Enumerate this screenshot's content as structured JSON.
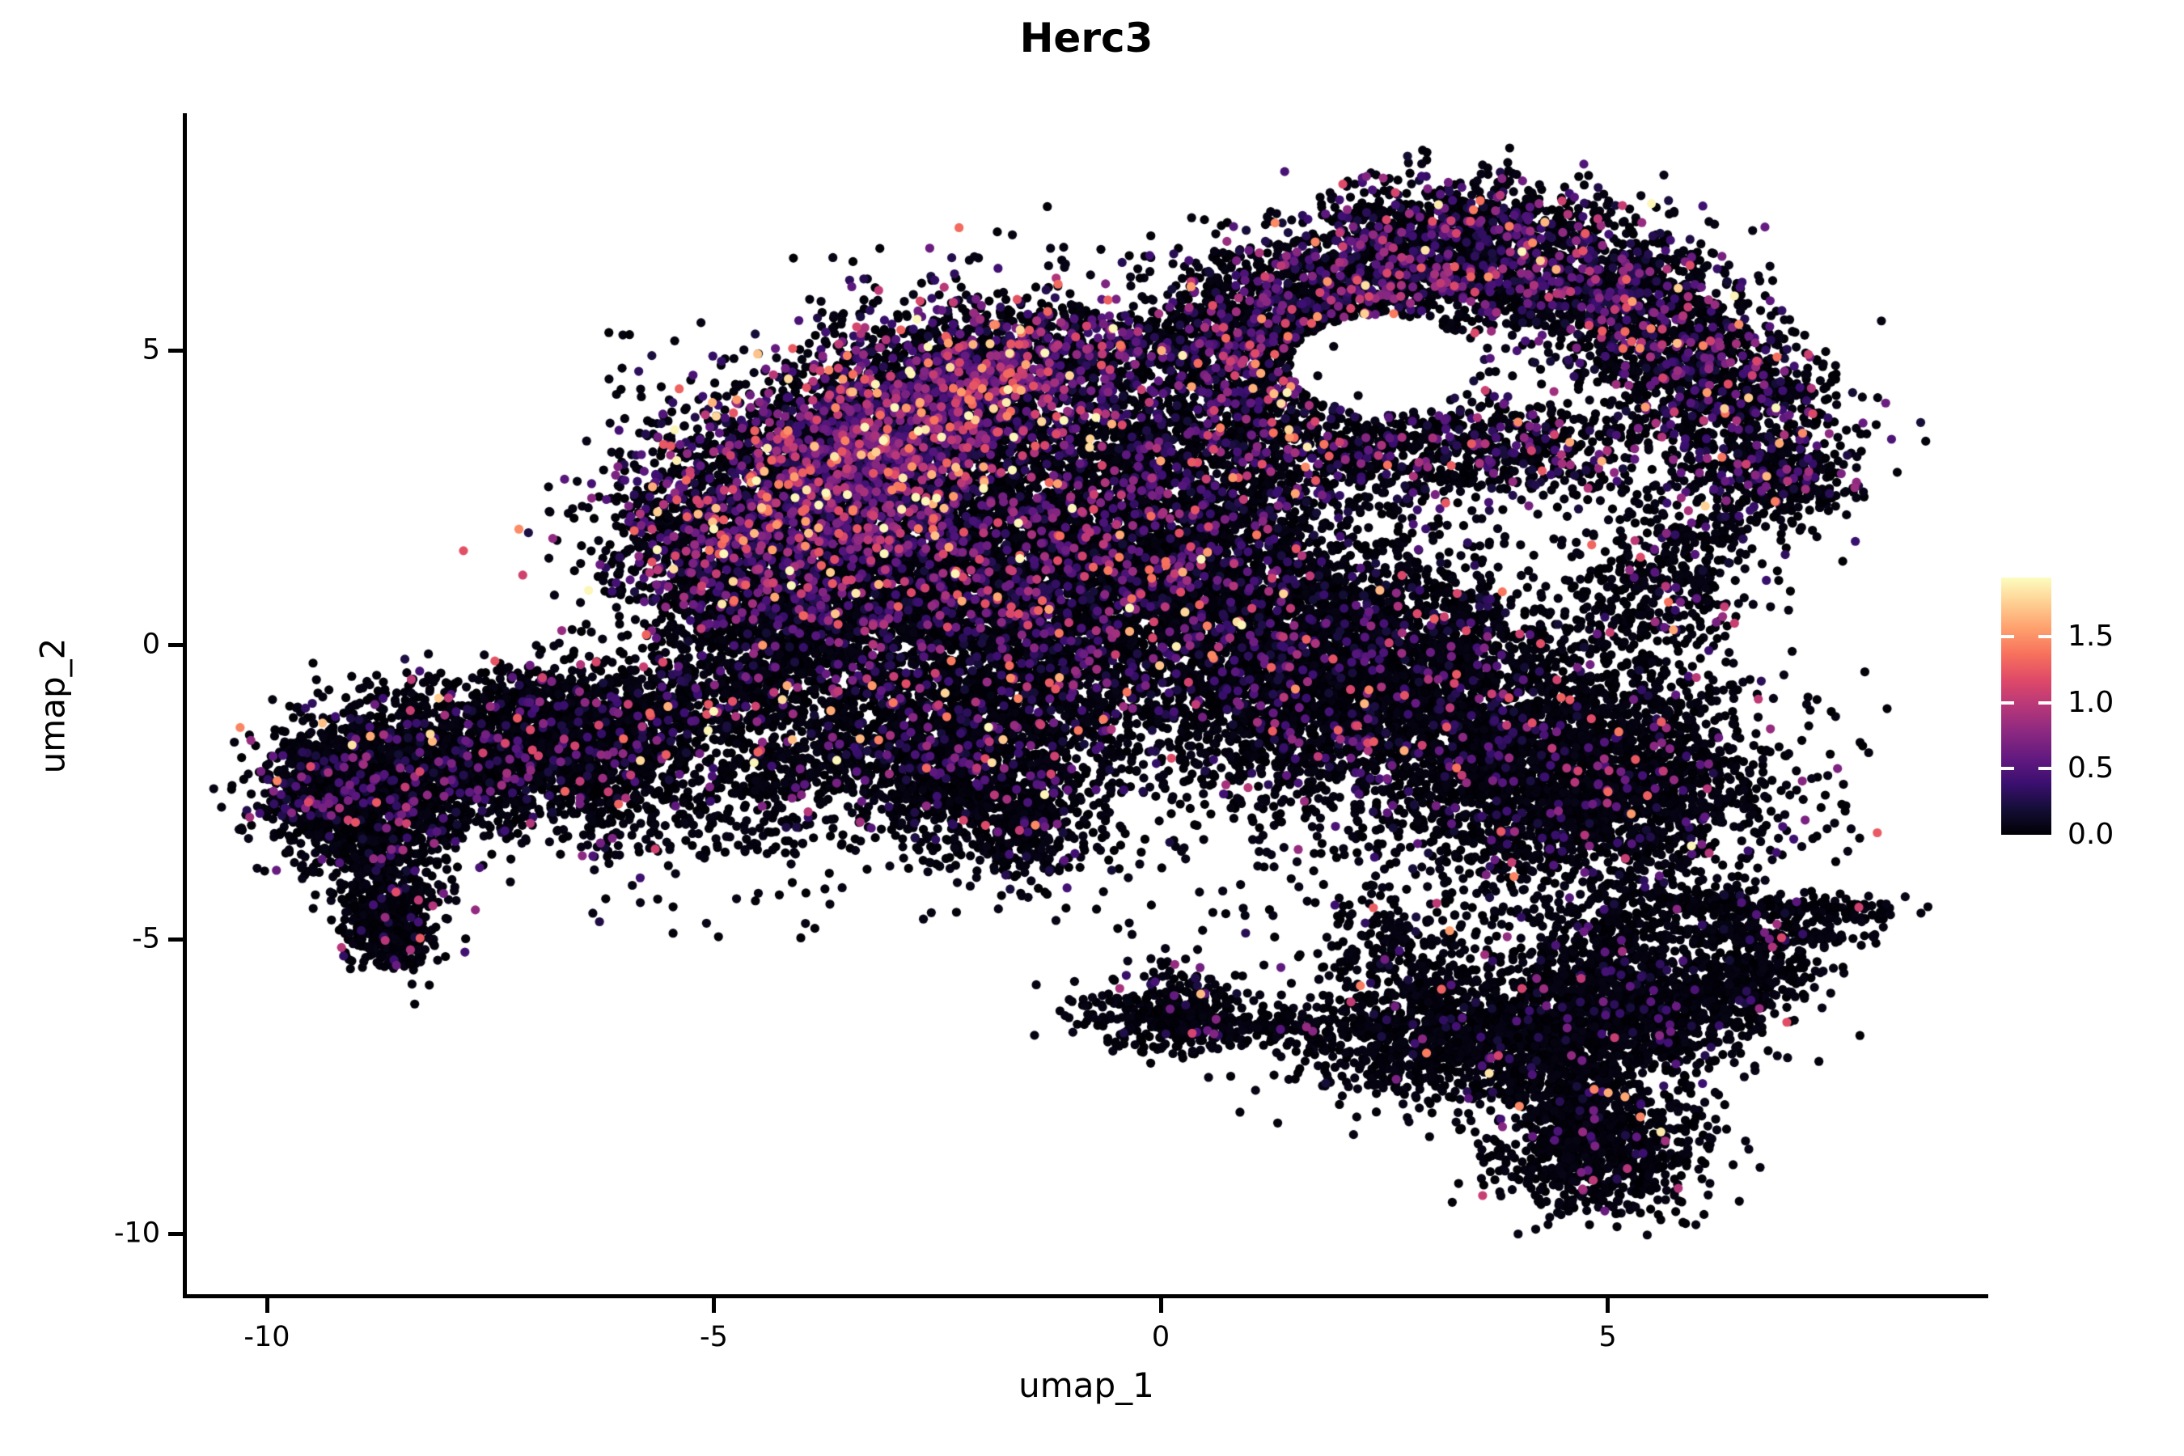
{
  "title": "Herc3",
  "axes": {
    "x_label": "umap_1",
    "y_label": "umap_2",
    "x_ticks": [
      "-10",
      "-5",
      "0",
      "5"
    ],
    "x_tick_values": [
      -10,
      -5,
      0,
      5
    ],
    "y_ticks": [
      "5",
      "0",
      "-5",
      "-10"
    ],
    "y_tick_values": [
      5,
      0,
      -5,
      -10
    ]
  },
  "legend": {
    "tick_labels": [
      "1.5",
      "1.0",
      "0.5",
      "0.0"
    ],
    "tick_values": [
      1.5,
      1.0,
      0.5,
      0.0
    ],
    "vmin": 0.0,
    "vmax": 1.95
  },
  "chart_data": {
    "type": "scatter",
    "title": "Herc3",
    "xlabel": "umap_1",
    "ylabel": "umap_2",
    "xlim": [
      -10.9,
      9.2
    ],
    "ylim": [
      -11.0,
      9.0
    ],
    "grid": false,
    "legend_position": "right",
    "colormap": "magma",
    "colormap_stops": [
      [
        0.0,
        "#000004"
      ],
      [
        0.1,
        "#140e36"
      ],
      [
        0.2,
        "#3b0f70"
      ],
      [
        0.3,
        "#641a80"
      ],
      [
        0.4,
        "#8c2981"
      ],
      [
        0.5,
        "#b73779"
      ],
      [
        0.6,
        "#de4968"
      ],
      [
        0.7,
        "#f7705c"
      ],
      [
        0.8,
        "#fe9f6d"
      ],
      [
        0.9,
        "#fecf92"
      ],
      [
        1.0,
        "#fcfdbf"
      ]
    ],
    "point_radius_px": 5.6,
    "seed": 1337,
    "hole": {
      "cx": 2.45,
      "cy": 4.75,
      "rx": 1.0,
      "ry": 0.85
    },
    "clusters": [
      {
        "name": "left-arm",
        "type": "strip",
        "x1": -9.4,
        "y1": -2.6,
        "x2": -6.2,
        "y2": -1.55,
        "sx": 0.45,
        "sy": 0.62,
        "n": 2600,
        "colored": 0.09
      },
      {
        "name": "left-tip",
        "type": "gauss",
        "cx": -9.35,
        "cy": -2.3,
        "sx": 0.35,
        "sy": 0.5,
        "n": 400,
        "colored": 0.1
      },
      {
        "name": "left-finger",
        "type": "strip",
        "x1": -8.75,
        "y1": -3.0,
        "x2": -8.55,
        "y2": -5.1,
        "sx": 0.3,
        "sy": 0.35,
        "n": 650,
        "colored": 0.05
      },
      {
        "name": "left-finger-tip",
        "type": "gauss",
        "cx": -8.6,
        "cy": -5.0,
        "sx": 0.22,
        "sy": 0.22,
        "n": 150,
        "colored": 0.04
      },
      {
        "name": "arm-top-scatter",
        "type": "strip",
        "x1": -8.8,
        "y1": -1.1,
        "x2": -6.3,
        "y2": -0.9,
        "sx": 0.5,
        "sy": 0.35,
        "n": 280,
        "colored": 0.08
      },
      {
        "name": "arm-bridge",
        "type": "strip",
        "x1": -6.2,
        "y1": -1.8,
        "x2": -4.6,
        "y2": -0.6,
        "sx": 0.5,
        "sy": 0.55,
        "n": 800,
        "colored": 0.08
      },
      {
        "name": "bridge-sparse-low",
        "type": "uniform",
        "x1": -6.5,
        "y1": -3.6,
        "x2": -4.0,
        "y2": -1.8,
        "n": 300,
        "colored": 0.07
      },
      {
        "name": "bridge-sparse-mid",
        "type": "uniform",
        "x1": -4.6,
        "y1": -2.5,
        "x2": -3.4,
        "y2": 0.0,
        "n": 250,
        "colored": 0.07
      },
      {
        "name": "neck",
        "type": "gauss",
        "cx": -4.3,
        "cy": 0.7,
        "sx": 0.6,
        "sy": 0.6,
        "n": 700,
        "colored": 0.12
      },
      {
        "name": "upper-wedge",
        "type": "strip",
        "x1": -5.0,
        "y1": 1.6,
        "x2": -1.6,
        "y2": 4.6,
        "sx": 0.85,
        "sy": 0.95,
        "n": 4600,
        "colored": 0.34,
        "value_scale": 1.15
      },
      {
        "name": "upper-wedge-top",
        "type": "strip",
        "x1": -4.3,
        "y1": 2.9,
        "x2": -1.2,
        "y2": 5.1,
        "sx": 0.6,
        "sy": 0.45,
        "n": 1200,
        "colored": 0.38,
        "value_scale": 1.15
      },
      {
        "name": "upper-wedge-left-edge",
        "type": "strip",
        "x1": -5.9,
        "y1": 1.2,
        "x2": -5.2,
        "y2": 2.6,
        "sx": 0.35,
        "sy": 0.4,
        "n": 180,
        "colored": 0.15
      },
      {
        "name": "central-mass",
        "type": "gauss",
        "cx": -1.7,
        "cy": 0.9,
        "sx": 1.45,
        "sy": 1.35,
        "n": 5200,
        "colored": 0.16
      },
      {
        "name": "central-low-bump",
        "type": "gauss",
        "cx": -2.3,
        "cy": -1.9,
        "sx": 0.8,
        "sy": 0.75,
        "n": 1400,
        "colored": 0.1
      },
      {
        "name": "central-dip",
        "type": "gauss",
        "cx": -1.6,
        "cy": -3.0,
        "sx": 0.45,
        "sy": 0.5,
        "n": 350,
        "colored": 0.08
      },
      {
        "name": "mid-bridge",
        "type": "gauss",
        "cx": 0.3,
        "cy": 1.6,
        "sx": 0.9,
        "sy": 1.1,
        "n": 1500,
        "colored": 0.14
      },
      {
        "name": "mid-upper",
        "type": "gauss",
        "cx": 0.0,
        "cy": 3.6,
        "sx": 0.8,
        "sy": 0.7,
        "n": 600,
        "colored": 0.2
      },
      {
        "name": "top-band",
        "type": "strip",
        "x1": -1.3,
        "y1": 5.0,
        "x2": 0.9,
        "y2": 5.15,
        "sx": 0.45,
        "sy": 0.35,
        "n": 300,
        "colored": 0.25
      },
      {
        "name": "saddle-sparse",
        "type": "strip",
        "x1": 0.2,
        "y1": 5.4,
        "x2": 1.2,
        "y2": 6.4,
        "sx": 0.4,
        "sy": 0.4,
        "n": 120,
        "colored": 0.2,
        "avoid": true
      },
      {
        "name": "right-center-mass",
        "type": "gauss",
        "cx": 2.2,
        "cy": -0.6,
        "sx": 1.25,
        "sy": 1.15,
        "n": 3800,
        "colored": 0.1
      },
      {
        "name": "right-mass",
        "type": "gauss",
        "cx": 4.8,
        "cy": -2.4,
        "sx": 1.05,
        "sy": 0.95,
        "n": 2600,
        "colored": 0.06
      },
      {
        "name": "right-upper-bridge",
        "type": "strip",
        "x1": 6.3,
        "y1": 2.6,
        "x2": 5.2,
        "y2": 0.2,
        "sx": 0.5,
        "sy": 0.5,
        "n": 500,
        "colored": 0.1
      },
      {
        "name": "arc-top-left",
        "type": "strip",
        "x1": 0.9,
        "y1": 5.1,
        "x2": 3.2,
        "y2": 7.0,
        "sx": 0.75,
        "sy": 0.6,
        "n": 1600,
        "colored": 0.25,
        "avoid": true
      },
      {
        "name": "arc-top-right",
        "type": "strip",
        "x1": 3.2,
        "y1": 7.0,
        "x2": 5.2,
        "y2": 6.0,
        "sx": 0.6,
        "sy": 0.55,
        "n": 1300,
        "colored": 0.25,
        "avoid": true
      },
      {
        "name": "arc-right-limb",
        "type": "strip",
        "x1": 5.2,
        "y1": 6.0,
        "x2": 6.8,
        "y2": 3.4,
        "sx": 0.6,
        "sy": 0.6,
        "n": 1500,
        "colored": 0.22,
        "avoid": true
      },
      {
        "name": "arc-bottom",
        "type": "strip",
        "x1": 1.3,
        "y1": 3.2,
        "x2": 4.8,
        "y2": 3.4,
        "sx": 0.6,
        "sy": 0.45,
        "n": 900,
        "colored": 0.2,
        "avoid": true
      },
      {
        "name": "arc-left-rim",
        "type": "strip",
        "x1": 0.9,
        "y1": 3.9,
        "x2": 1.3,
        "y2": 5.0,
        "sx": 0.4,
        "sy": 0.4,
        "n": 350,
        "colored": 0.22,
        "avoid": true
      },
      {
        "name": "arc-tip",
        "type": "strip",
        "x1": 6.8,
        "y1": 3.3,
        "x2": 7.1,
        "y2": 2.4,
        "sx": 0.28,
        "sy": 0.3,
        "n": 220,
        "colored": 0.15
      },
      {
        "name": "arc-tip-strays",
        "type": "uniform",
        "x1": 7.2,
        "y1": 2.4,
        "x2": 7.9,
        "y2": 3.2,
        "n": 25,
        "colored": 0.1
      },
      {
        "name": "lower-right",
        "type": "strip",
        "x1": 2.6,
        "y1": -6.9,
        "x2": 5.9,
        "y2": -6.1,
        "sx": 0.7,
        "sy": 0.55,
        "n": 2300,
        "colored": 0.04
      },
      {
        "name": "lower-right-east",
        "type": "strip",
        "x1": 5.9,
        "y1": -6.2,
        "x2": 6.9,
        "y2": -5.3,
        "sx": 0.35,
        "sy": 0.3,
        "n": 350,
        "colored": 0.04
      },
      {
        "name": "lower-right-north",
        "type": "strip",
        "x1": 4.6,
        "y1": -5.6,
        "x2": 5.4,
        "y2": -4.8,
        "sx": 0.4,
        "sy": 0.4,
        "n": 300,
        "colored": 0.05
      },
      {
        "name": "lower-right-west-sparse",
        "type": "strip",
        "x1": 2.4,
        "y1": -4.6,
        "x2": 3.0,
        "y2": -5.9,
        "sx": 0.5,
        "sy": 0.4,
        "n": 260,
        "colored": 0.05
      },
      {
        "name": "bottom-knot",
        "type": "gauss",
        "cx": 4.87,
        "cy": -8.55,
        "sx": 0.55,
        "sy": 0.6,
        "n": 850,
        "colored": 0.03
      },
      {
        "name": "knot-neck",
        "type": "strip",
        "x1": 4.5,
        "y1": -7.4,
        "x2": 4.85,
        "y2": -8.2,
        "sx": 0.3,
        "sy": 0.3,
        "n": 250,
        "colored": 0.03
      },
      {
        "name": "small-left-cluster",
        "type": "gauss",
        "cx": 0.1,
        "cy": -6.35,
        "sx": 0.5,
        "sy": 0.3,
        "n": 380,
        "colored": 0.05
      },
      {
        "name": "small-cluster-trail",
        "type": "strip",
        "x1": 0.8,
        "y1": -6.4,
        "x2": 2.2,
        "y2": -6.55,
        "sx": 0.35,
        "sy": 0.18,
        "n": 120,
        "colored": 0.04
      },
      {
        "name": "small-cluster-up",
        "type": "gauss",
        "cx": 0.3,
        "cy": -5.7,
        "sx": 0.35,
        "sy": 0.3,
        "n": 60,
        "colored": 0.04
      },
      {
        "name": "right-spike-upper",
        "type": "strip",
        "x1": 5.6,
        "y1": -4.35,
        "x2": 8.0,
        "y2": -4.55,
        "sx": 0.25,
        "sy": 0.12,
        "n": 260,
        "colored": 0.04
      },
      {
        "name": "right-spike-lower",
        "type": "strip",
        "x1": 6.0,
        "y1": -4.85,
        "x2": 7.6,
        "y2": -5.0,
        "sx": 0.3,
        "sy": 0.1,
        "n": 140,
        "colored": 0.04
      },
      {
        "name": "gap-noise",
        "type": "uniform",
        "x1": -6.5,
        "y1": -5.0,
        "x2": 6.5,
        "y2": 5.5,
        "n": 700,
        "colored": 0.08,
        "avoid": true
      }
    ]
  }
}
